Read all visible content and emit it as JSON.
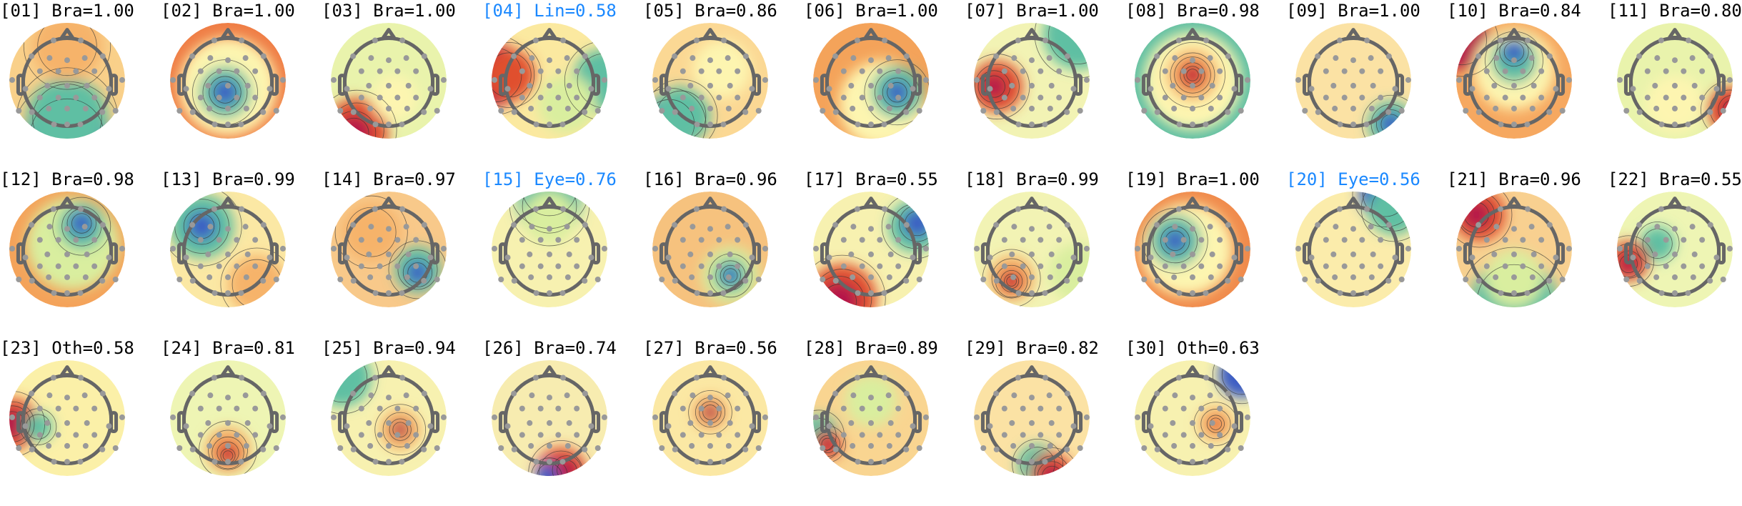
{
  "colors": {
    "label_default": "#000000",
    "label_highlight": "#1a88ff",
    "colormap": [
      "#3b5cc4",
      "#5fbfa3",
      "#e4f2a6",
      "#fdf5b0",
      "#f8c07a",
      "#e8603c",
      "#b5124a"
    ],
    "head_outline": "#666666",
    "electrode": "#999999"
  },
  "components": [
    {
      "title": "[01] Bra=1.00",
      "highlight": false
    },
    {
      "title": "[02] Bra=1.00",
      "highlight": false
    },
    {
      "title": "[03] Bra=1.00",
      "highlight": false
    },
    {
      "title": "[04] Lin=0.58",
      "highlight": true
    },
    {
      "title": "[05] Bra=0.86",
      "highlight": false
    },
    {
      "title": "[06] Bra=1.00",
      "highlight": false
    },
    {
      "title": "[07] Bra=1.00",
      "highlight": false
    },
    {
      "title": "[08] Bra=0.98",
      "highlight": false
    },
    {
      "title": "[09] Bra=1.00",
      "highlight": false
    },
    {
      "title": "[10] Bra=0.84",
      "highlight": false
    },
    {
      "title": "[11] Bra=0.80",
      "highlight": false
    },
    {
      "title": "[12] Bra=0.98",
      "highlight": false
    },
    {
      "title": "[13] Bra=0.99",
      "highlight": false
    },
    {
      "title": "[14] Bra=0.97",
      "highlight": false
    },
    {
      "title": "[15] Eye=0.76",
      "highlight": true
    },
    {
      "title": "[16] Bra=0.96",
      "highlight": false
    },
    {
      "title": "[17] Bra=0.55",
      "highlight": false
    },
    {
      "title": "[18] Bra=0.99",
      "highlight": false
    },
    {
      "title": "[19] Bra=1.00",
      "highlight": false
    },
    {
      "title": "[20] Eye=0.56",
      "highlight": true
    },
    {
      "title": "[21] Bra=0.96",
      "highlight": false
    },
    {
      "title": "[22] Bra=0.55",
      "highlight": false
    },
    {
      "title": "[23] Oth=0.58",
      "highlight": false
    },
    {
      "title": "[24] Bra=0.81",
      "highlight": false
    },
    {
      "title": "[25] Bra=0.94",
      "highlight": false
    },
    {
      "title": "[26] Bra=0.74",
      "highlight": false
    },
    {
      "title": "[27] Bra=0.56",
      "highlight": false
    },
    {
      "title": "[28] Bra=0.89",
      "highlight": false
    },
    {
      "title": "[29] Bra=0.82",
      "highlight": false
    },
    {
      "title": "[30] Oth=0.63",
      "highlight": false
    }
  ]
}
